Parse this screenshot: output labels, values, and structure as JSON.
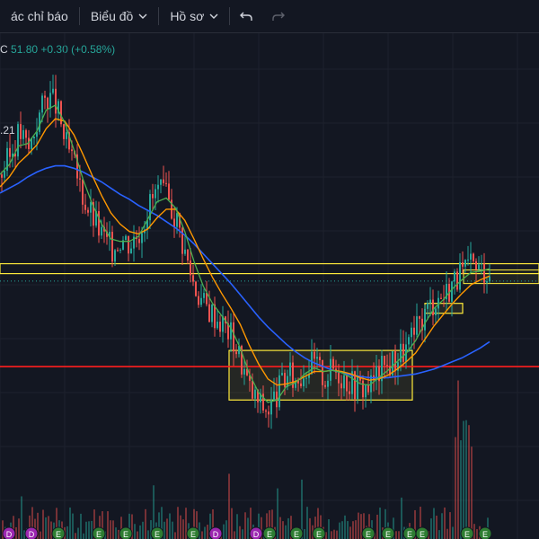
{
  "toolbar": {
    "indicators_label": "ác chỉ báo",
    "chart_label": "Biểu đồ",
    "profile_label": "Hồ sơ",
    "undo_icon": "undo-icon",
    "redo_icon": "redo-icon"
  },
  "legend": {
    "symbol_tail": "C",
    "price": "51.80",
    "change": "+0.30",
    "change_pct": "(+0.58%)"
  },
  "price_tag": ".21",
  "colors": {
    "background": "#131722",
    "up": "#26a69a",
    "down": "#ef5350",
    "ma_blue": "#2962ff",
    "ma_orange": "#ff9800",
    "ma_green": "#4caf50",
    "zone_yellow": "#ffeb3b",
    "support_red": "#ff1e1e"
  },
  "chart_data": {
    "type": "candlestick",
    "price_path": [
      46.0,
      47.5,
      49.5,
      48.0,
      50.5,
      52.5,
      51.5,
      48.5,
      46.5,
      44.0,
      42.5,
      41.0,
      40.0,
      41.0,
      40.5,
      41.5,
      43.5,
      44.8,
      44.0,
      42.5,
      39.5,
      37.0,
      35.5,
      34.8,
      34.0,
      33.0,
      31.0,
      28.5,
      27.5,
      27.0,
      28.5,
      29.8,
      29.4,
      30.5,
      30.8,
      29.6,
      30.4,
      29.8,
      29.2,
      28.8,
      29.0,
      30.2,
      30.6,
      31.4,
      32.0,
      33.4,
      35.0,
      36.0,
      36.3,
      37.5,
      38.0,
      38.6,
      38.3,
      38.5
    ],
    "ma_fast": [
      46.0,
      46.8,
      48.3,
      48.5,
      49.5,
      51.2,
      51.6,
      50.2,
      48.0,
      45.6,
      43.6,
      42.0,
      40.8,
      40.6,
      40.6,
      41.0,
      42.4,
      43.8,
      44.1,
      43.3,
      41.4,
      39.0,
      37.0,
      35.6,
      34.6,
      33.6,
      32.0,
      29.9,
      28.4,
      27.6,
      27.8,
      28.9,
      29.2,
      29.9,
      30.4,
      30.1,
      30.2,
      30.0,
      29.6,
      29.1,
      29.0,
      29.6,
      30.2,
      30.9,
      31.6,
      32.6,
      34.0,
      35.2,
      35.9,
      36.8,
      37.5,
      38.1,
      38.2,
      38.4
    ],
    "ma_medium": [
      45.0,
      45.8,
      46.9,
      47.6,
      48.4,
      49.7,
      50.5,
      50.3,
      49.2,
      47.6,
      45.9,
      44.3,
      42.9,
      42.0,
      41.4,
      41.2,
      41.6,
      42.5,
      43.2,
      43.2,
      42.3,
      40.8,
      39.2,
      37.7,
      36.4,
      35.2,
      33.9,
      32.2,
      30.7,
      29.5,
      29.0,
      29.1,
      29.3,
      29.7,
      30.1,
      30.1,
      30.2,
      30.1,
      29.9,
      29.6,
      29.4,
      29.5,
      29.8,
      30.3,
      30.9,
      31.6,
      32.7,
      33.8,
      34.7,
      35.6,
      36.4,
      37.1,
      37.5,
      37.8
    ],
    "ma_slow": [
      44.5,
      44.9,
      45.3,
      45.8,
      46.2,
      46.5,
      46.7,
      46.7,
      46.5,
      46.2,
      45.8,
      45.4,
      44.9,
      44.4,
      44.0,
      43.5,
      43.1,
      42.7,
      42.2,
      41.7,
      41.1,
      40.4,
      39.6,
      38.8,
      38.0,
      37.2,
      36.3,
      35.4,
      34.5,
      33.7,
      33.0,
      32.3,
      31.7,
      31.2,
      30.8,
      30.5,
      30.2,
      30.0,
      29.8,
      29.7,
      29.6,
      29.6,
      29.6,
      29.7,
      29.8,
      29.9,
      30.1,
      30.3,
      30.6,
      30.9,
      31.2,
      31.6,
      32.0,
      32.5
    ],
    "zones": [
      {
        "name": "resistance-band",
        "low": 38.0,
        "high": 38.8
      },
      {
        "name": "accumulation-box",
        "low": 27.8,
        "high": 31.8
      },
      {
        "name": "breakout-box",
        "low": 34.8,
        "high": 35.6
      },
      {
        "name": "recent-box",
        "low": 37.2,
        "high": 38.3
      }
    ],
    "support_level": 30.5,
    "y_range": [
      25.5,
      54.5
    ],
    "volume_markers": [
      "D",
      "D",
      "E",
      "E",
      "E",
      "E",
      "E",
      "D",
      "D",
      "E",
      "E",
      "E",
      "E",
      "E",
      "E",
      "E",
      "E",
      "E"
    ],
    "grid": true
  }
}
